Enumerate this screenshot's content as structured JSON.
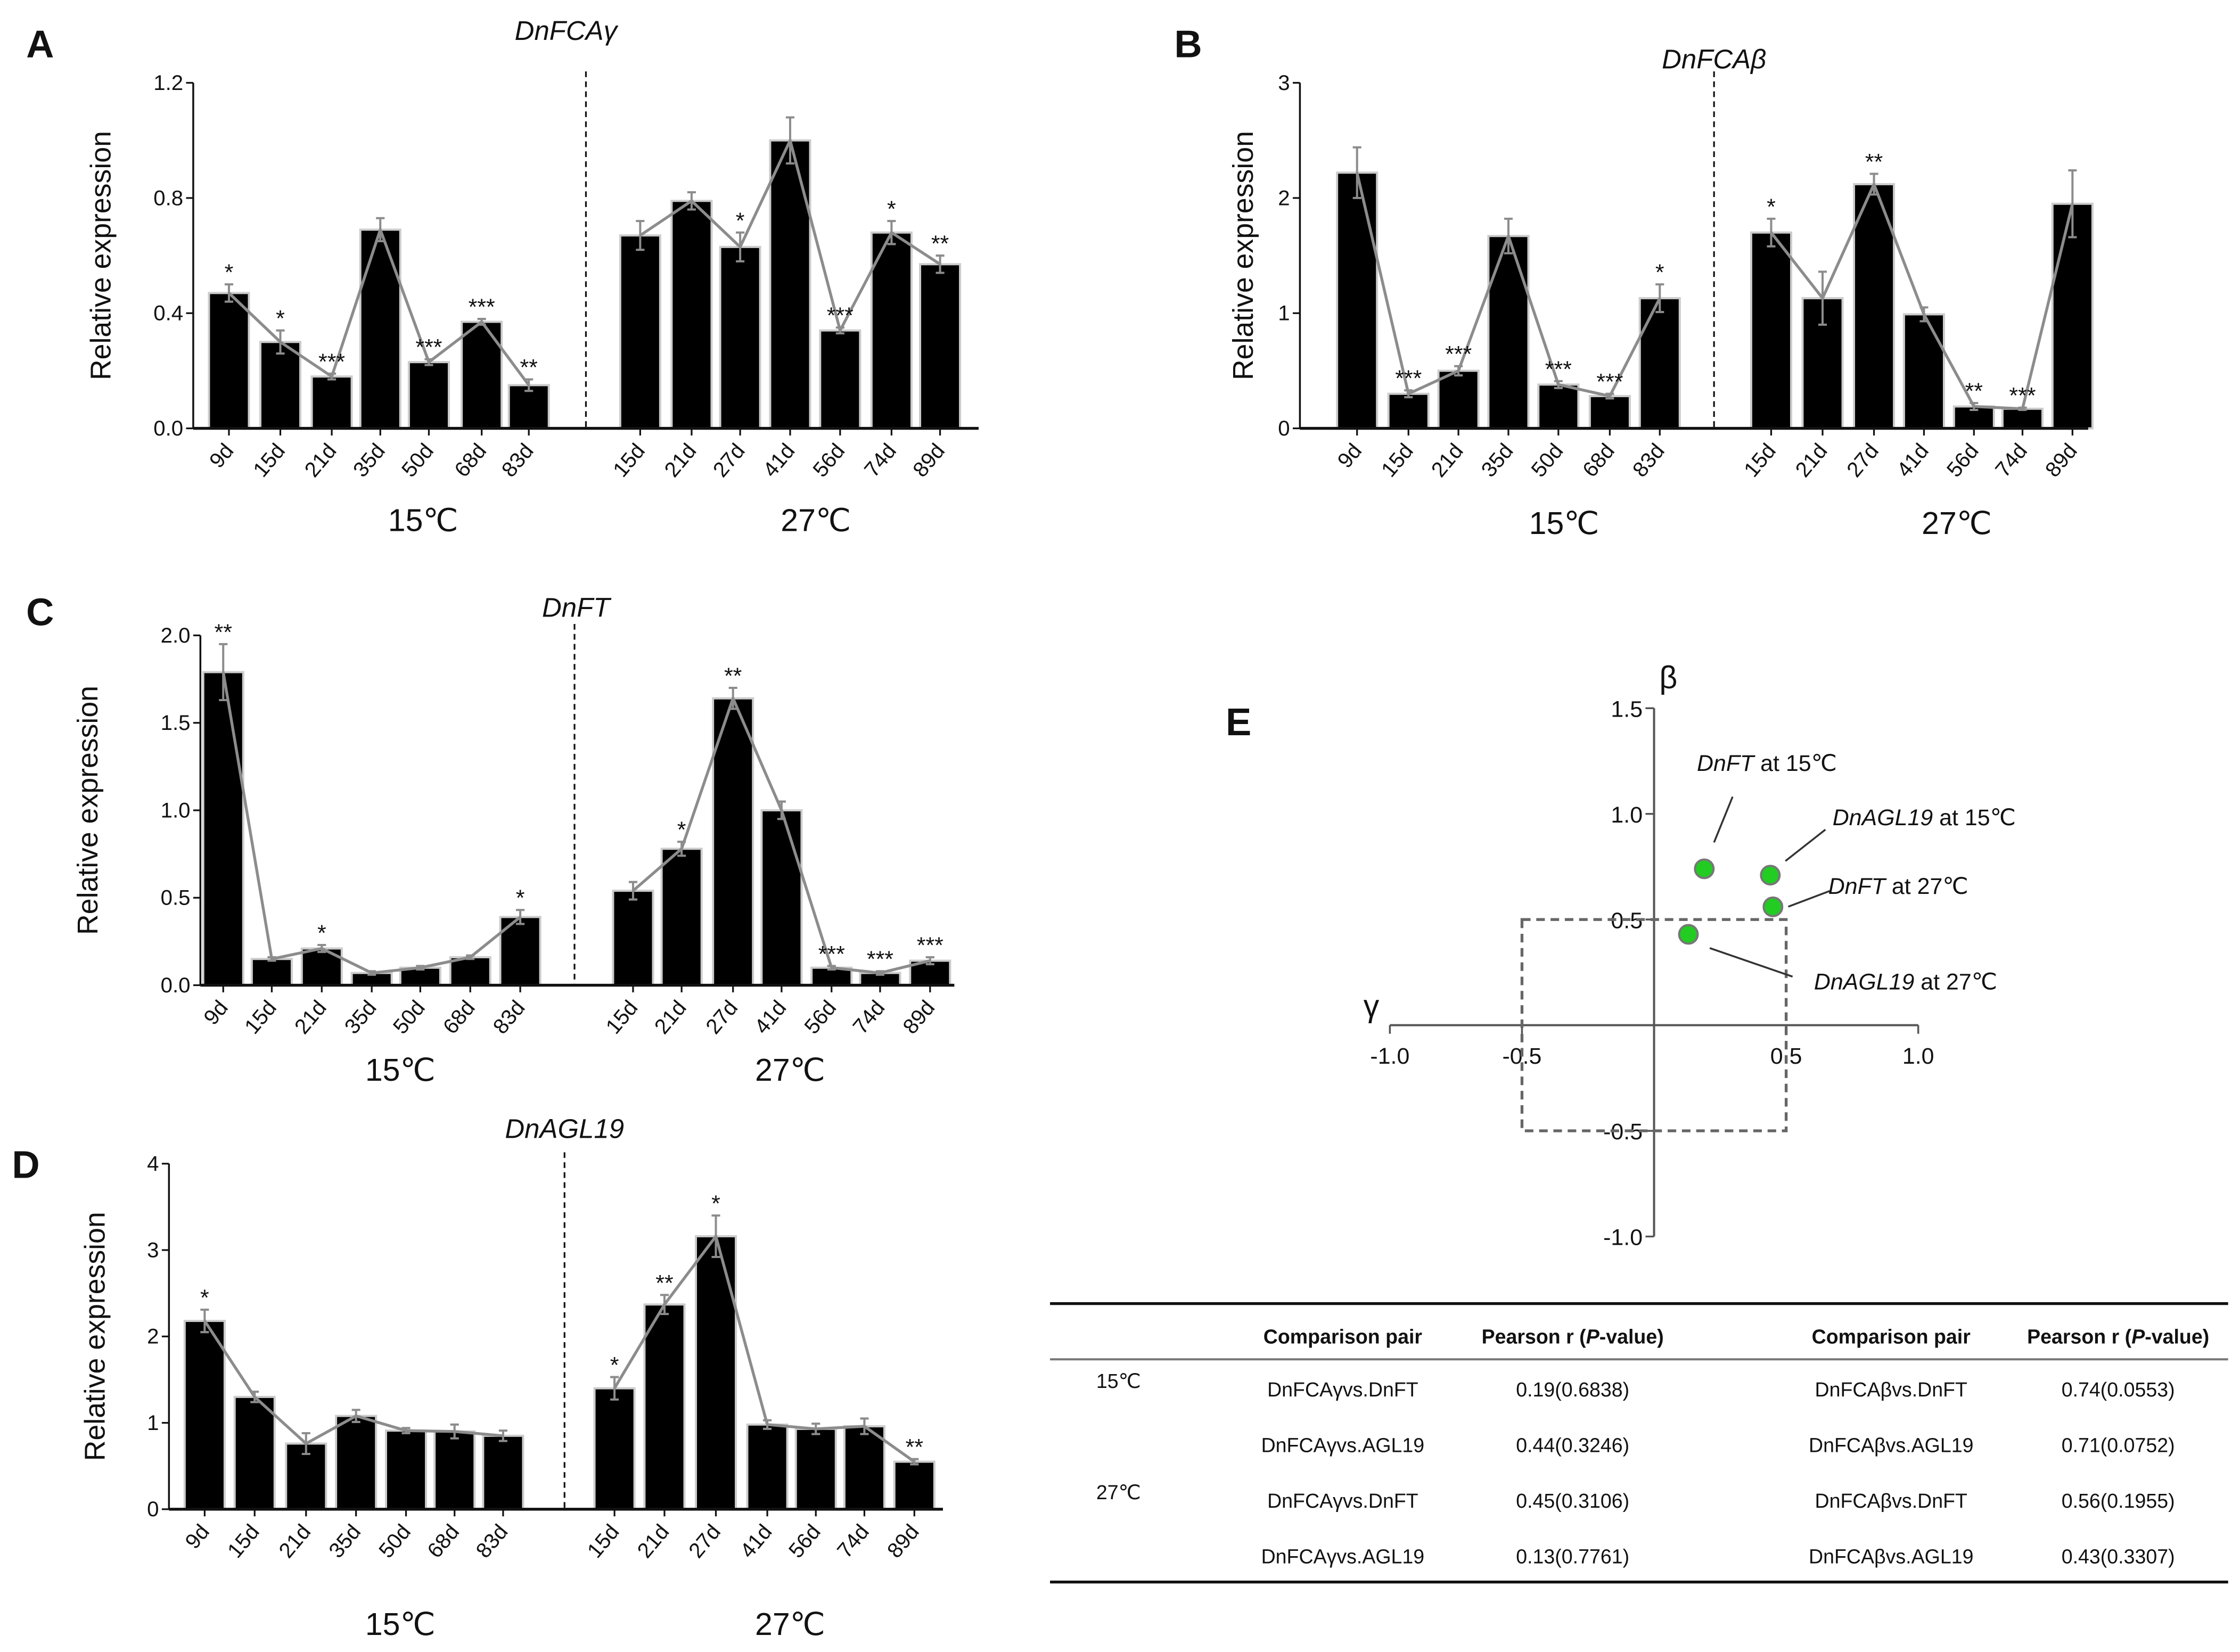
{
  "chart_data": [
    {
      "panel": "A",
      "type": "bar",
      "title": "DnFCAγ",
      "ylabel": "Relative expression",
      "ylim": [
        0,
        1.2
      ],
      "yticks": [
        "0.0",
        "0.4",
        "0.8",
        "1.2"
      ],
      "groups": [
        {
          "name": "15℃",
          "categories": [
            "9d",
            "15d",
            "21d",
            "35d",
            "50d",
            "68d",
            "83d"
          ],
          "values": [
            0.47,
            0.3,
            0.18,
            0.69,
            0.23,
            0.37,
            0.15
          ],
          "errors": [
            0.03,
            0.04,
            0.01,
            0.04,
            0.01,
            0.01,
            0.02
          ],
          "significance": [
            "*",
            "*",
            "***",
            "",
            "***",
            "***",
            "**"
          ]
        },
        {
          "name": "27℃",
          "categories": [
            "15d",
            "21d",
            "27d",
            "41d",
            "56d",
            "74d",
            "89d"
          ],
          "values": [
            0.67,
            0.79,
            0.63,
            1.0,
            0.34,
            0.68,
            0.57
          ],
          "errors": [
            0.05,
            0.03,
            0.05,
            0.08,
            0.01,
            0.04,
            0.03
          ],
          "significance": [
            "",
            "",
            "*",
            "",
            "***",
            "*",
            "**"
          ]
        }
      ]
    },
    {
      "panel": "B",
      "type": "bar",
      "title": "DnFCAβ",
      "ylabel": "Relative expression",
      "ylim": [
        0,
        3
      ],
      "yticks": [
        "0",
        "1",
        "2",
        "3"
      ],
      "groups": [
        {
          "name": "15℃",
          "categories": [
            "9d",
            "15d",
            "21d",
            "35d",
            "50d",
            "68d",
            "83d"
          ],
          "values": [
            2.22,
            0.3,
            0.5,
            1.67,
            0.38,
            0.28,
            1.13
          ],
          "errors": [
            0.22,
            0.03,
            0.04,
            0.15,
            0.03,
            0.02,
            0.12
          ],
          "significance": [
            "",
            "***",
            "***",
            "",
            "***",
            "***",
            "*"
          ]
        },
        {
          "name": "27℃",
          "categories": [
            "15d",
            "21d",
            "27d",
            "41d",
            "56d",
            "74d",
            "89d"
          ],
          "values": [
            1.7,
            1.13,
            2.12,
            0.99,
            0.19,
            0.17,
            1.95
          ],
          "errors": [
            0.12,
            0.23,
            0.09,
            0.06,
            0.03,
            0.01,
            0.29
          ],
          "significance": [
            "*",
            "",
            "**",
            "",
            "**",
            "***",
            ""
          ]
        }
      ]
    },
    {
      "panel": "C",
      "type": "bar",
      "title": "DnFT",
      "ylabel": "Relative expression",
      "ylim": [
        0,
        2.0
      ],
      "yticks": [
        "0.0",
        "0.5",
        "1.0",
        "1.5",
        "2.0"
      ],
      "groups": [
        {
          "name": "15℃",
          "categories": [
            "9d",
            "15d",
            "21d",
            "35d",
            "50d",
            "68d",
            "83d"
          ],
          "values": [
            1.79,
            0.15,
            0.21,
            0.07,
            0.1,
            0.16,
            0.39
          ],
          "errors": [
            0.16,
            0.01,
            0.02,
            0.01,
            0.01,
            0.01,
            0.04
          ],
          "significance": [
            "**",
            "",
            "*",
            "",
            "",
            "",
            "*"
          ]
        },
        {
          "name": "27℃",
          "categories": [
            "15d",
            "21d",
            "27d",
            "41d",
            "56d",
            "74d",
            "89d"
          ],
          "values": [
            0.54,
            0.78,
            1.64,
            1.0,
            0.1,
            0.07,
            0.14
          ],
          "errors": [
            0.05,
            0.04,
            0.06,
            0.05,
            0.01,
            0.01,
            0.02
          ],
          "significance": [
            "",
            "*",
            "**",
            "",
            "***",
            "***",
            "***"
          ]
        }
      ]
    },
    {
      "panel": "D",
      "type": "bar",
      "title": "DnAGL19",
      "ylabel": "Relative expression",
      "ylim": [
        0,
        4
      ],
      "yticks": [
        "0",
        "1",
        "2",
        "3",
        "4"
      ],
      "groups": [
        {
          "name": "15℃",
          "categories": [
            "9d",
            "15d",
            "21d",
            "35d",
            "50d",
            "68d",
            "83d"
          ],
          "values": [
            2.18,
            1.3,
            0.76,
            1.08,
            0.91,
            0.9,
            0.85
          ],
          "errors": [
            0.13,
            0.06,
            0.12,
            0.07,
            0.03,
            0.08,
            0.06
          ],
          "significance": [
            "*",
            "",
            "",
            "",
            "",
            "",
            ""
          ]
        },
        {
          "name": "27℃",
          "categories": [
            "15d",
            "21d",
            "27d",
            "41d",
            "56d",
            "74d",
            "89d"
          ],
          "values": [
            1.4,
            2.37,
            3.16,
            0.98,
            0.93,
            0.96,
            0.55
          ],
          "errors": [
            0.13,
            0.11,
            0.24,
            0.05,
            0.06,
            0.09,
            0.03
          ],
          "significance": [
            "*",
            "**",
            "*",
            "",
            "",
            "",
            "**"
          ]
        }
      ]
    },
    {
      "panel": "E",
      "type": "scatter",
      "xlabel": "γ",
      "ylabel": "β",
      "xlim": [
        -1.0,
        1.0
      ],
      "ylim": [
        -1.0,
        1.5
      ],
      "xticks": [
        "-1.0",
        "-0.5",
        "0.5",
        "1.0"
      ],
      "yticks": [
        "-1.0",
        "-0.5",
        "0.5",
        "1.0",
        "1.5"
      ],
      "threshold_box": [
        -0.5,
        0.5
      ],
      "point_color": "#22cc22",
      "points": [
        {
          "gene": "DnFT",
          "suffix": " at 15℃",
          "x": 0.19,
          "y": 0.74
        },
        {
          "gene": "DnAGL19",
          "suffix": " at 15℃",
          "x": 0.44,
          "y": 0.71
        },
        {
          "gene": "DnFT",
          "suffix": " at 27℃",
          "x": 0.45,
          "y": 0.56
        },
        {
          "gene": "DnAGL19",
          "suffix": " at 27℃",
          "x": 0.13,
          "y": 0.43
        }
      ]
    }
  ],
  "table": {
    "headers": [
      "Comparison pair",
      "Pearson r (",
      "P",
      "-value)"
    ],
    "groups": [
      "15℃",
      "27℃"
    ],
    "rows": [
      [
        "DnFCAγvs.DnFT",
        "0.19(0.6838)",
        "DnFCAβvs.DnFT",
        "0.74(0.0553)"
      ],
      [
        "DnFCAγvs.AGL19",
        "0.44(0.3246)",
        "DnFCAβvs.AGL19",
        "0.71(0.0752)"
      ],
      [
        "DnFCAγvs.DnFT",
        "0.45(0.3106)",
        "DnFCAβvs.DnFT",
        "0.56(0.1955)"
      ],
      [
        "DnFCAγvs.AGL19",
        "0.13(0.7761)",
        "DnFCAβvs.AGL19",
        "0.43(0.3307)"
      ]
    ]
  }
}
